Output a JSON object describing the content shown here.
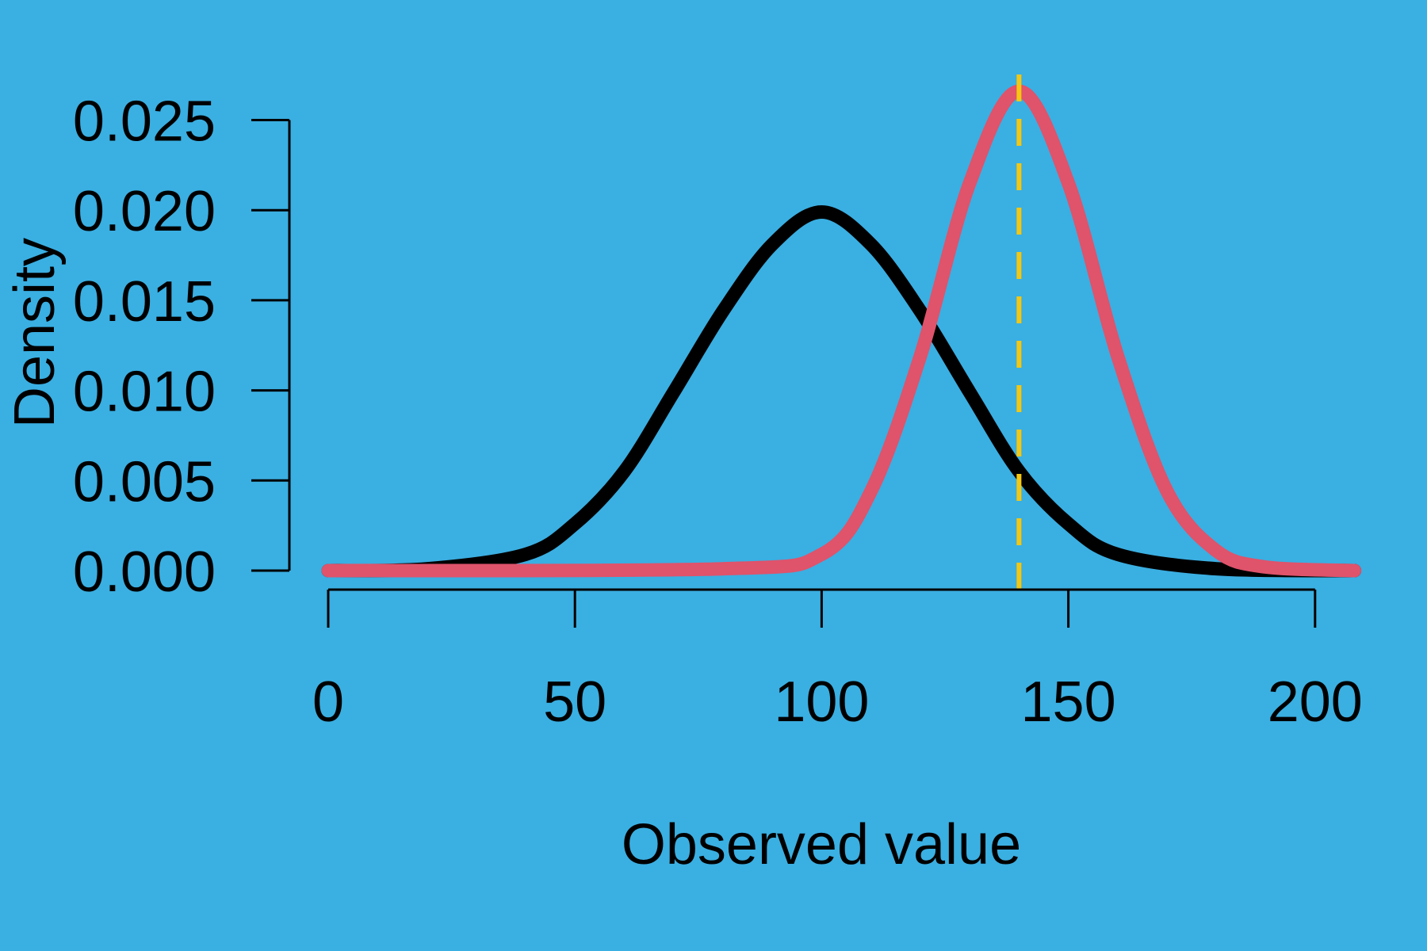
{
  "chart_data": {
    "type": "line",
    "title": "",
    "xlabel": "Observed value",
    "ylabel": "Density",
    "xlim": [
      0,
      208
    ],
    "ylim": [
      0,
      0.025
    ],
    "x_ticks": [
      0,
      50,
      100,
      150,
      200
    ],
    "x_tick_labels": [
      "0",
      "50",
      "100",
      "150",
      "200"
    ],
    "y_ticks": [
      0,
      0.005,
      0.01,
      0.015,
      0.02,
      0.025
    ],
    "y_tick_labels": [
      "0.000",
      "0.005",
      "0.010",
      "0.015",
      "0.020",
      "0.025"
    ],
    "grid": false,
    "legend": "none",
    "background_color": "#3AAFE2",
    "series": [
      {
        "color": "#000000",
        "x": [
          0,
          20,
          40,
          50,
          60,
          70,
          80,
          90,
          100,
          110,
          120,
          130,
          140,
          150,
          160,
          180,
          208
        ],
        "y": [
          0,
          0.0001,
          0.0009,
          0.0026,
          0.0055,
          0.0099,
          0.0144,
          0.0181,
          0.0199,
          0.0181,
          0.0144,
          0.0099,
          0.0055,
          0.0026,
          0.0009,
          0.0001,
          0
        ]
      },
      {
        "color": "#DF536B",
        "x": [
          0,
          80,
          100,
          110,
          120,
          130,
          140,
          150,
          160,
          170,
          180,
          190,
          208
        ],
        "y": [
          0,
          0.0001,
          0.0009,
          0.0044,
          0.0119,
          0.0215,
          0.0266,
          0.0215,
          0.0119,
          0.0044,
          0.0011,
          0.0002,
          0
        ]
      }
    ],
    "reference_lines": [
      {
        "orientation": "vertical",
        "x": 140,
        "style": "dashed",
        "color": "#F5C710"
      }
    ]
  }
}
